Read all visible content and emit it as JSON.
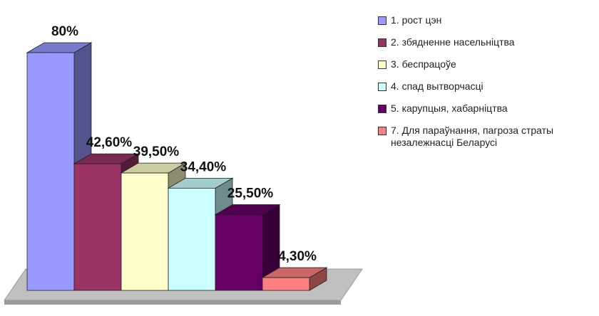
{
  "chart_data": {
    "type": "bar",
    "title": "",
    "xlabel": "",
    "ylabel": "",
    "ylim": [
      0,
      80
    ],
    "grid": false,
    "legend_position": "right",
    "categories": [
      "1. рост цэн",
      "2. збядненне насельніцтва",
      "3. беспрацоўе",
      "4. спад вытворчасці",
      "5. карупцыя, хабарніцтва",
      "7. Для параўнання, пагроза страты незалежнасці Беларусі"
    ],
    "values": [
      80,
      42.6,
      39.5,
      34.4,
      25.5,
      4.3
    ],
    "value_labels": [
      "80%",
      "42,60%",
      "39,50%",
      "34,40%",
      "25,50%",
      "4,30%"
    ],
    "colors": [
      "#9999ff",
      "#993366",
      "#ffffcc",
      "#ccffff",
      "#660066",
      "#ff8080"
    ]
  }
}
